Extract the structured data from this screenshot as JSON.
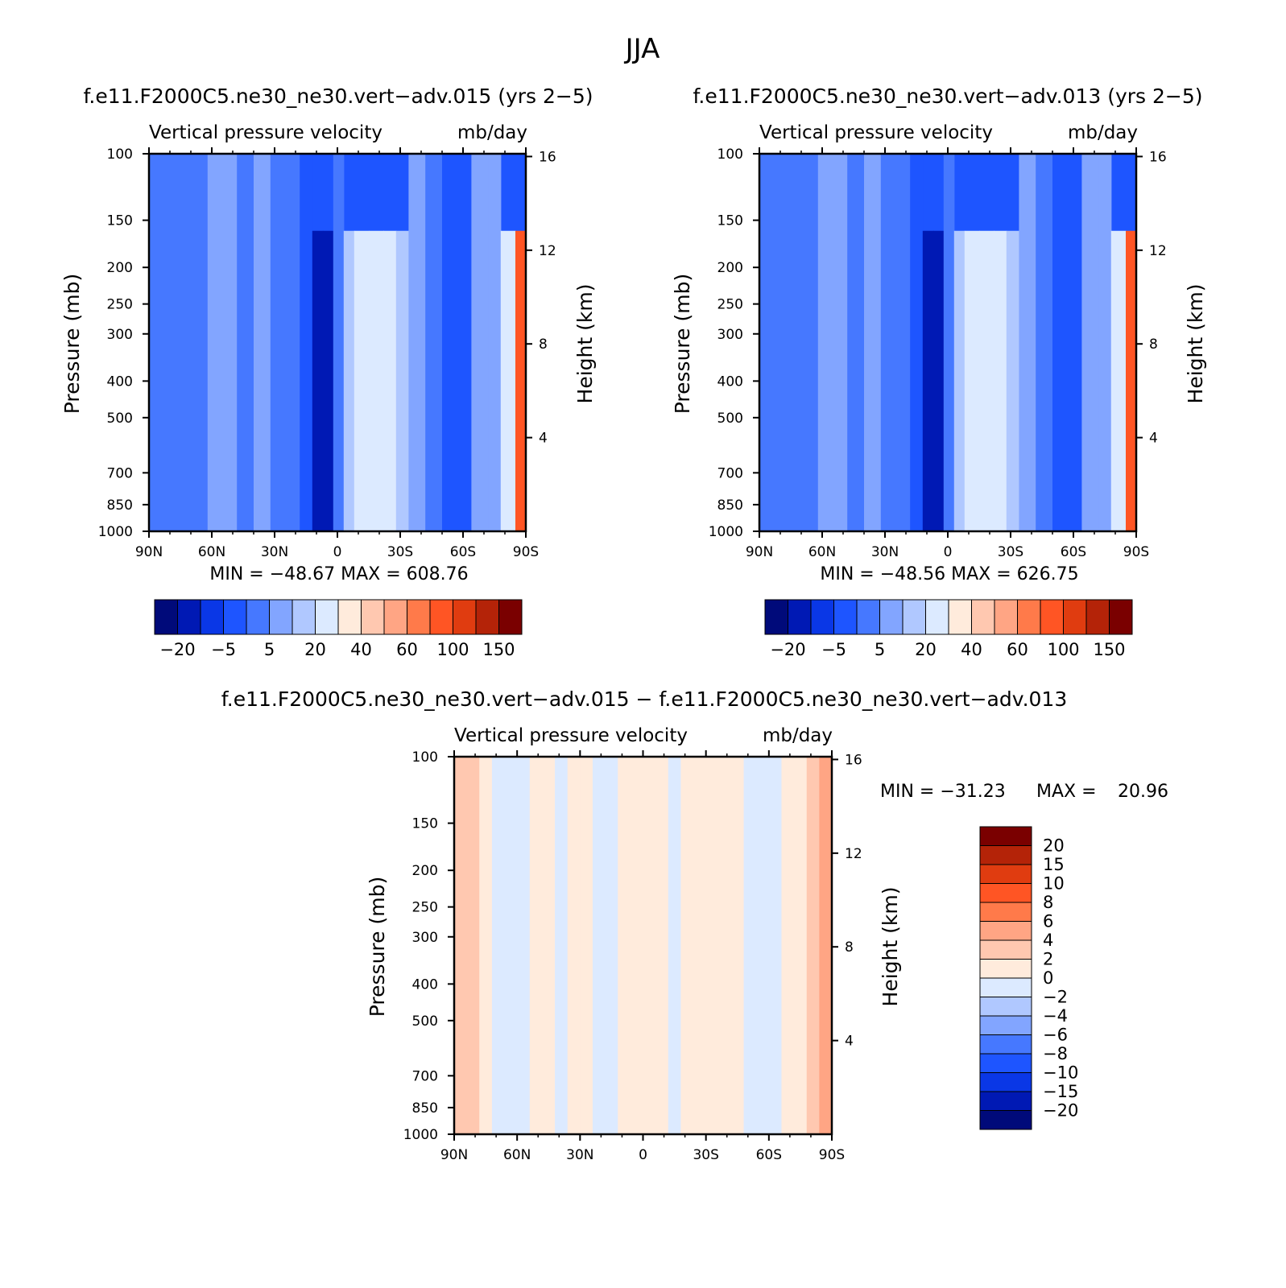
{
  "figure_title": "JJA",
  "chart_data": [
    {
      "type": "heatmap",
      "id": "p1",
      "title": "f.e11.F2000C5.ne30_ne30.vert−adv.015 (yrs 2−5)",
      "subtitle_left": "Vertical pressure velocity",
      "subtitle_right": "mb/day",
      "xlabel": "",
      "ylabel": "Pressure (mb)",
      "ylabel_right": "Height (km)",
      "x_ticks": [
        "90N",
        "60N",
        "30N",
        "0",
        "30S",
        "60S",
        "90S"
      ],
      "y_ticks": [
        100,
        150,
        200,
        250,
        300,
        400,
        500,
        700,
        850,
        1000
      ],
      "y_ticks_right": [
        16,
        12,
        8,
        4
      ],
      "ylim": [
        1000,
        100
      ],
      "xlim": [
        90,
        -90
      ],
      "stats": "MIN = −48.67   MAX = 608.76",
      "colorbar": {
        "orientation": "horizontal",
        "labels": [
          "−20",
          "−5",
          "5",
          "20",
          "40",
          "60",
          "100",
          "150"
        ],
        "colors": [
          "#000a7a",
          "#0019b4",
          "#0a37e6",
          "#1e55ff",
          "#4678ff",
          "#82a5ff",
          "#b0c8ff",
          "#dceaff",
          "#ffebdc",
          "#ffc8b0",
          "#ffa584",
          "#ff7a4a",
          "#ff5524",
          "#e03c10",
          "#b42308",
          "#7a0000"
        ]
      },
      "bands": [
        {
          "lat": 90,
          "v": -2
        },
        {
          "lat": 85,
          "v": 2
        },
        {
          "lat": 78,
          "v": 4
        },
        {
          "lat": 70,
          "v": 5
        },
        {
          "lat": 62,
          "v": 4
        },
        {
          "lat": 55,
          "v": 6
        },
        {
          "lat": 48,
          "v": 4
        },
        {
          "lat": 40,
          "v": 5
        },
        {
          "lat": 32,
          "v": 6
        },
        {
          "lat": 25,
          "v": 3
        },
        {
          "lat": 18,
          "v": 2
        },
        {
          "lat": 12,
          "v": -10
        },
        {
          "lat": 7,
          "v": -20
        },
        {
          "lat": 2,
          "v": -5
        },
        {
          "lat": -3,
          "v": 5
        },
        {
          "lat": -8,
          "v": 15
        },
        {
          "lat": -15,
          "v": 28
        },
        {
          "lat": -22,
          "v": 30
        },
        {
          "lat": -28,
          "v": 22
        },
        {
          "lat": -34,
          "v": 8
        },
        {
          "lat": -42,
          "v": 4
        },
        {
          "lat": -50,
          "v": 3
        },
        {
          "lat": -58,
          "v": -5
        },
        {
          "lat": -64,
          "v": 2
        },
        {
          "lat": -72,
          "v": 8
        },
        {
          "lat": -78,
          "v": 3
        },
        {
          "lat": -85,
          "v": 40
        },
        {
          "lat": -90,
          "v": 120
        }
      ]
    },
    {
      "type": "heatmap",
      "id": "p2",
      "title": "f.e11.F2000C5.ne30_ne30.vert−adv.013 (yrs 2−5)",
      "subtitle_left": "Vertical pressure velocity",
      "subtitle_right": "mb/day",
      "xlabel": "",
      "ylabel": "Pressure (mb)",
      "ylabel_right": "Height (km)",
      "x_ticks": [
        "90N",
        "60N",
        "30N",
        "0",
        "30S",
        "60S",
        "90S"
      ],
      "y_ticks": [
        100,
        150,
        200,
        250,
        300,
        400,
        500,
        700,
        850,
        1000
      ],
      "y_ticks_right": [
        16,
        12,
        8,
        4
      ],
      "ylim": [
        1000,
        100
      ],
      "xlim": [
        90,
        -90
      ],
      "stats": "MIN = −48.56   MAX = 626.75",
      "colorbar": {
        "orientation": "horizontal",
        "labels": [
          "−20",
          "−5",
          "5",
          "20",
          "40",
          "60",
          "100",
          "150"
        ],
        "colors": [
          "#000a7a",
          "#0019b4",
          "#0a37e6",
          "#1e55ff",
          "#4678ff",
          "#82a5ff",
          "#b0c8ff",
          "#dceaff",
          "#ffebdc",
          "#ffc8b0",
          "#ffa584",
          "#ff7a4a",
          "#ff5524",
          "#e03c10",
          "#b42308",
          "#7a0000"
        ]
      },
      "bands": [
        {
          "lat": 90,
          "v": -2
        },
        {
          "lat": 85,
          "v": 2
        },
        {
          "lat": 78,
          "v": 4
        },
        {
          "lat": 70,
          "v": 5
        },
        {
          "lat": 62,
          "v": 4
        },
        {
          "lat": 55,
          "v": 6
        },
        {
          "lat": 48,
          "v": 4
        },
        {
          "lat": 40,
          "v": 5
        },
        {
          "lat": 32,
          "v": 6
        },
        {
          "lat": 25,
          "v": 3
        },
        {
          "lat": 18,
          "v": 2
        },
        {
          "lat": 12,
          "v": -10
        },
        {
          "lat": 7,
          "v": -20
        },
        {
          "lat": 2,
          "v": -5
        },
        {
          "lat": -3,
          "v": 5
        },
        {
          "lat": -8,
          "v": 15
        },
        {
          "lat": -15,
          "v": 28
        },
        {
          "lat": -22,
          "v": 30
        },
        {
          "lat": -28,
          "v": 22
        },
        {
          "lat": -34,
          "v": 8
        },
        {
          "lat": -42,
          "v": 4
        },
        {
          "lat": -50,
          "v": 3
        },
        {
          "lat": -58,
          "v": -5
        },
        {
          "lat": -64,
          "v": 2
        },
        {
          "lat": -72,
          "v": 8
        },
        {
          "lat": -78,
          "v": 3
        },
        {
          "lat": -85,
          "v": 40
        },
        {
          "lat": -90,
          "v": 120
        }
      ]
    },
    {
      "type": "heatmap",
      "id": "p3",
      "title": "f.e11.F2000C5.ne30_ne30.vert−adv.015 − f.e11.F2000C5.ne30_ne30.vert−adv.013",
      "subtitle_left": "Vertical pressure velocity",
      "subtitle_right": "mb/day",
      "xlabel": "",
      "ylabel": "Pressure (mb)",
      "ylabel_right": "Height (km)",
      "x_ticks": [
        "90N",
        "60N",
        "30N",
        "0",
        "30S",
        "60S",
        "90S"
      ],
      "y_ticks": [
        100,
        150,
        200,
        250,
        300,
        400,
        500,
        700,
        850,
        1000
      ],
      "y_ticks_right": [
        16,
        12,
        8,
        4
      ],
      "ylim": [
        1000,
        100
      ],
      "xlim": [
        90,
        -90
      ],
      "stats_min_label": "MIN = −31.23",
      "stats_max_label": "MAX =",
      "stats_max_value": "20.96",
      "colorbar": {
        "orientation": "vertical",
        "labels": [
          "20",
          "15",
          "10",
          "8",
          "6",
          "4",
          "2",
          "0",
          "−2",
          "−4",
          "−6",
          "−8",
          "−10",
          "−15",
          "−20"
        ],
        "colors": [
          "#7a0000",
          "#b42308",
          "#e03c10",
          "#ff5524",
          "#ff7a4a",
          "#ffa584",
          "#ffc8b0",
          "#ffebdc",
          "#dceaff",
          "#b0c8ff",
          "#82a5ff",
          "#4678ff",
          "#1e55ff",
          "#0a37e6",
          "#0019b4",
          "#000a7a"
        ]
      },
      "bands": [
        {
          "lat": 90,
          "v": 1
        },
        {
          "lat": 84,
          "v": 3
        },
        {
          "lat": 78,
          "v": 1
        },
        {
          "lat": 72,
          "v": 0.5
        },
        {
          "lat": 66,
          "v": -1
        },
        {
          "lat": 60,
          "v": -3
        },
        {
          "lat": 54,
          "v": 1
        },
        {
          "lat": 48,
          "v": 1.5
        },
        {
          "lat": 42,
          "v": -1
        },
        {
          "lat": 36,
          "v": -1
        },
        {
          "lat": 30,
          "v": 1
        },
        {
          "lat": 24,
          "v": -1
        },
        {
          "lat": 18,
          "v": -3
        },
        {
          "lat": 12,
          "v": -1
        },
        {
          "lat": 6,
          "v": 1
        },
        {
          "lat": 0,
          "v": 1
        },
        {
          "lat": -6,
          "v": 2
        },
        {
          "lat": -12,
          "v": -1
        },
        {
          "lat": -18,
          "v": -1
        },
        {
          "lat": -24,
          "v": 1
        },
        {
          "lat": -30,
          "v": 1
        },
        {
          "lat": -36,
          "v": -1
        },
        {
          "lat": -42,
          "v": 1
        },
        {
          "lat": -48,
          "v": 0.5
        },
        {
          "lat": -54,
          "v": -1
        },
        {
          "lat": -60,
          "v": -3
        },
        {
          "lat": -66,
          "v": -1
        },
        {
          "lat": -72,
          "v": 1
        },
        {
          "lat": -78,
          "v": 1
        },
        {
          "lat": -84,
          "v": 4
        },
        {
          "lat": -90,
          "v": 6
        }
      ]
    }
  ]
}
